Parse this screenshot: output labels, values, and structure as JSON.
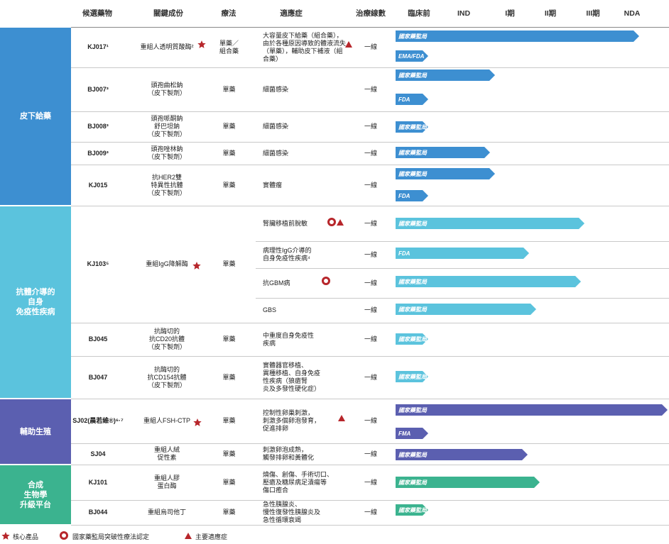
{
  "header": {
    "columns": [
      "候選藥物",
      "關鍵成份",
      "療法",
      "適應症",
      "治療線數",
      "臨床前",
      "IND",
      "I期",
      "II期",
      "III期",
      "NDA"
    ]
  },
  "groups": [
    {
      "label": "皮下給藥",
      "drugs": [
        {
          "code": "KJ017¹",
          "ingredient": "重組人透明質酸酶²",
          "therapy": "單藥／\n組合藥",
          "indications": [
            {
              "text": "大容量皮下給藥（組合藥），由於各種原因導致的體液流失（單藥），輔助皮下補液（組合藥）",
              "line": "一線",
              "approvals": [
                "國家藥監局",
                "EMA/FDA"
              ]
            }
          ]
        },
        {
          "code": "BJ007³",
          "ingredient": "頭孢曲松鈉\n（皮下製劑）",
          "therapy": "單藥",
          "indications": [
            {
              "text": "細菌感染",
              "line": "一線",
              "approvals": [
                "國家藥監局",
                "FDA"
              ]
            }
          ]
        },
        {
          "code": "BJ008³",
          "ingredient": "頭孢哌酮鈉\n舒巴坦鈉\n（皮下製劑）",
          "therapy": "單藥",
          "indications": [
            {
              "text": "細菌感染",
              "line": "一線",
              "approvals": [
                "國家藥監局"
              ]
            }
          ]
        },
        {
          "code": "BJ009³",
          "ingredient": "頭孢唑林鈉\n（皮下製劑）",
          "therapy": "單藥",
          "indications": [
            {
              "text": "細菌感染",
              "line": "一線",
              "approvals": [
                "國家藥監局"
              ]
            }
          ]
        },
        {
          "code": "KJ015",
          "ingredient": "抗HER2雙\n特異性抗體\n（皮下製劑）",
          "therapy": "單藥",
          "indications": [
            {
              "text": "實體瘤",
              "line": "一線",
              "approvals": [
                "國家藥監局",
                "FDA"
              ]
            }
          ]
        }
      ]
    },
    {
      "label": "抗體介導的\n自身\n免疫性疾病",
      "drugs": [
        {
          "code": "KJ103⁵",
          "ingredient": "重組IgG降解酶",
          "therapy": "單藥",
          "indications": [
            {
              "text": "腎臟移植前脫敏",
              "line": "一線",
              "approvals": [
                "國家藥監局"
              ]
            },
            {
              "text": "病理性IgG介導的\n自身免疫性疾病⁴",
              "line": "一線",
              "approvals": [
                "FDA"
              ]
            },
            {
              "text": "抗GBM病",
              "line": "一線",
              "approvals": [
                "國家藥監局"
              ]
            },
            {
              "text": "GBS",
              "line": "一線",
              "approvals": [
                "國家藥監局"
              ]
            }
          ]
        },
        {
          "code": "BJ045",
          "ingredient": "抗酶切的\n抗CD20抗體\n（皮下製劑）",
          "therapy": "單藥",
          "indications": [
            {
              "text": "中重度自身免疫性\n疾病",
              "line": "一線",
              "approvals": [
                "國家藥監局"
              ]
            }
          ]
        },
        {
          "code": "BJ047",
          "ingredient": "抗酶切的\n抗CD154抗體\n（皮下製劑）",
          "therapy": "單藥",
          "indications": [
            {
              "text": "實體器官移植、\n異種移植、自身免疫\n性疾病（狼瘡腎\n炎及多發性硬化症）",
              "line": "一線",
              "approvals": [
                "國家藥監局"
              ]
            }
          ]
        }
      ]
    },
    {
      "label": "輔助生殖",
      "drugs": [
        {
          "code": "SJ02(晨若維®)⁶·⁷",
          "ingredient": "重組人FSH-CTP",
          "therapy": "單藥",
          "indications": [
            {
              "text": "控制性卵巢刺激，\n刺激多個卵泡發育，\n促進排卵",
              "line": "一線",
              "approvals": [
                "國家藥監局",
                "FMA"
              ]
            }
          ]
        },
        {
          "code": "SJ04",
          "ingredient": "重組人絨\n促性素",
          "therapy": "單藥",
          "indications": [
            {
              "text": "刺激卵泡成熟，\n觸發排卵和黃體化",
              "line": "一線",
              "approvals": [
                "國家藥監局"
              ]
            }
          ]
        }
      ]
    },
    {
      "label": "合成\n生物學\n升級平台",
      "drugs": [
        {
          "code": "KJ101",
          "ingredient": "重組人膠\n蛋白酶",
          "therapy": "單藥",
          "indications": [
            {
              "text": "燒傷、創傷、手術切口、\n壓瘡及糖尿病足潰瘍等\n傷口癒合",
              "line": "一線",
              "approvals": [
                "國家藥監局"
              ]
            }
          ]
        },
        {
          "code": "BJ044",
          "ingredient": "重組烏司他丁",
          "therapy": "單藥",
          "indications": [
            {
              "text": "急性胰腺炎、\n慢性復發性胰腺炎及\n急性循環衰竭",
              "line": "一線",
              "approvals": [
                "國家藥監局"
              ]
            }
          ]
        }
      ]
    }
  ],
  "legend": [
    "核心產品",
    "國家藥監局突破性療法認定",
    "主要適應症"
  ]
}
